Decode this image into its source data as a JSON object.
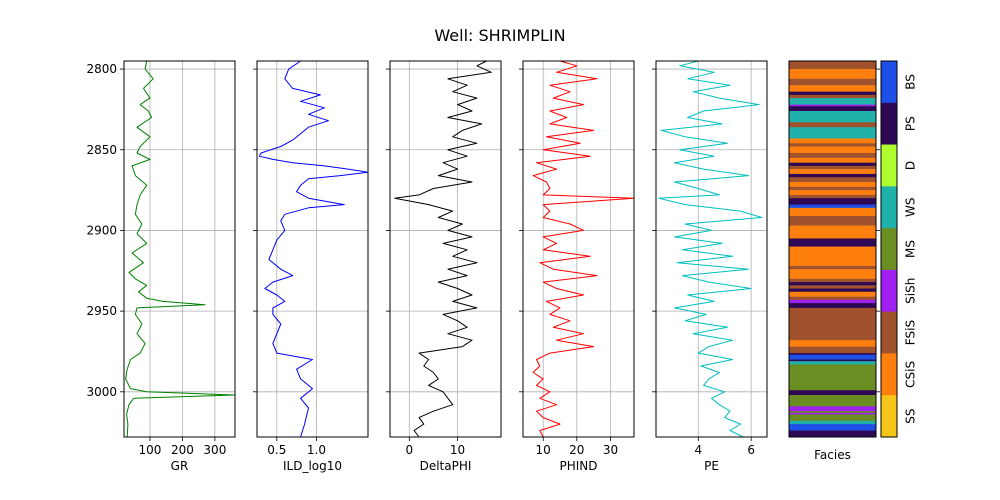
{
  "title": "Well: SHRIMPLIN",
  "chart_data": {
    "type": "line",
    "title": "Well: SHRIMPLIN",
    "depth_axis": {
      "ylim": [
        2795,
        3028
      ],
      "inverted": true,
      "ticks": [
        2800,
        2850,
        2900,
        2950,
        3000
      ],
      "grid": true
    },
    "tracks": [
      {
        "key": "gr",
        "xlabel": "GR",
        "color": "#008000",
        "xlim": [
          20,
          362
        ],
        "ticks": [
          100,
          200,
          300
        ],
        "tick_labels": [
          "100",
          "200",
          "300"
        ],
        "depths": [
          2794,
          2800,
          2806,
          2812,
          2818,
          2822,
          2826,
          2830,
          2836,
          2842,
          2848,
          2852,
          2856,
          2860,
          2866,
          2872,
          2878,
          2884,
          2890,
          2896,
          2902,
          2908,
          2914,
          2920,
          2926,
          2930,
          2934,
          2938,
          2942,
          2944,
          2946,
          2948,
          2952,
          2958,
          2964,
          2970,
          2976,
          2980,
          2986,
          2992,
          2998,
          3000,
          3002,
          3004,
          3008,
          3014,
          3020,
          3028
        ],
        "values": [
          90,
          85,
          110,
          80,
          100,
          70,
          95,
          105,
          60,
          100,
          70,
          60,
          100,
          45,
          55,
          90,
          70,
          60,
          55,
          75,
          60,
          90,
          45,
          80,
          35,
          55,
          90,
          65,
          90,
          140,
          270,
          60,
          55,
          75,
          60,
          85,
          70,
          40,
          30,
          25,
          40,
          90,
          360,
          50,
          35,
          28,
          32,
          30
        ]
      },
      {
        "key": "ild",
        "xlabel": "ILD_log10",
        "color": "#0000ff",
        "xlim": [
          0.25,
          1.65
        ],
        "ticks": [
          0.5,
          1.0
        ],
        "tick_labels": [
          "0.5",
          "1.0"
        ],
        "depths": [
          2794,
          2800,
          2806,
          2812,
          2816,
          2820,
          2824,
          2828,
          2832,
          2836,
          2840,
          2844,
          2848,
          2852,
          2854,
          2856,
          2858,
          2860,
          2862,
          2864,
          2866,
          2868,
          2872,
          2876,
          2880,
          2884,
          2886,
          2890,
          2894,
          2900,
          2906,
          2912,
          2918,
          2924,
          2928,
          2932,
          2936,
          2940,
          2944,
          2948,
          2952,
          2958,
          2964,
          2970,
          2976,
          2980,
          2986,
          2992,
          2998,
          3004,
          3010,
          3020,
          3028
        ],
        "values": [
          0.8,
          0.65,
          0.6,
          0.7,
          1.05,
          0.8,
          1.1,
          0.9,
          1.15,
          0.9,
          0.8,
          0.7,
          0.55,
          0.3,
          0.28,
          0.45,
          0.7,
          1.1,
          1.4,
          1.65,
          1.3,
          0.9,
          0.8,
          0.75,
          0.9,
          1.35,
          0.9,
          0.6,
          0.55,
          0.6,
          0.5,
          0.45,
          0.4,
          0.55,
          0.7,
          0.45,
          0.35,
          0.5,
          0.6,
          0.45,
          0.45,
          0.55,
          0.5,
          0.45,
          0.5,
          0.95,
          0.75,
          0.8,
          0.95,
          0.8,
          0.9,
          0.85,
          0.8
        ]
      },
      {
        "key": "dphi",
        "xlabel": "DeltaPHI",
        "color": "#000000",
        "xlim": [
          -4,
          19
        ],
        "ticks": [
          0,
          10
        ],
        "tick_labels": [
          "0",
          "10"
        ],
        "depths": [
          2794,
          2798,
          2802,
          2806,
          2810,
          2814,
          2818,
          2822,
          2826,
          2830,
          2834,
          2838,
          2842,
          2846,
          2850,
          2854,
          2858,
          2862,
          2866,
          2870,
          2874,
          2878,
          2880,
          2884,
          2888,
          2892,
          2896,
          2900,
          2904,
          2908,
          2912,
          2916,
          2920,
          2924,
          2928,
          2932,
          2936,
          2940,
          2944,
          2948,
          2952,
          2956,
          2960,
          2964,
          2968,
          2972,
          2976,
          2980,
          2984,
          2988,
          2992,
          2996,
          3000,
          3004,
          3008,
          3012,
          3016,
          3020,
          3024,
          3028
        ],
        "values": [
          16,
          14,
          17,
          8,
          12,
          9,
          14,
          10,
          13,
          8,
          15,
          11,
          9,
          14,
          8,
          12,
          7,
          10,
          6,
          13,
          5,
          2,
          -3,
          4,
          9,
          6,
          11,
          8,
          13,
          7,
          12,
          9,
          14,
          8,
          12,
          6,
          10,
          13,
          9,
          14,
          7,
          10,
          12,
          8,
          13,
          11,
          2,
          4,
          3,
          5,
          6,
          4,
          7,
          8,
          9,
          5,
          2,
          3,
          1,
          2
        ]
      },
      {
        "key": "phind",
        "xlabel": "PHIND",
        "color": "#ff0000",
        "xlim": [
          4,
          37
        ],
        "ticks": [
          10,
          20,
          30
        ],
        "tick_labels": [
          "10",
          "20",
          "30"
        ],
        "depths": [
          2794,
          2798,
          2802,
          2806,
          2810,
          2814,
          2818,
          2822,
          2826,
          2830,
          2834,
          2838,
          2842,
          2846,
          2850,
          2854,
          2858,
          2862,
          2866,
          2870,
          2874,
          2878,
          2880,
          2884,
          2888,
          2892,
          2896,
          2900,
          2904,
          2908,
          2912,
          2916,
          2920,
          2924,
          2928,
          2932,
          2936,
          2940,
          2944,
          2948,
          2952,
          2956,
          2960,
          2964,
          2968,
          2972,
          2976,
          2980,
          2984,
          2988,
          2992,
          2996,
          3000,
          3004,
          3008,
          3012,
          3016,
          3020,
          3024,
          3028
        ],
        "values": [
          15,
          20,
          14,
          26,
          12,
          18,
          13,
          22,
          12,
          17,
          12,
          25,
          11,
          21,
          10,
          24,
          8,
          14,
          7,
          11,
          12,
          10,
          37,
          10,
          12,
          10,
          18,
          22,
          10,
          14,
          10,
          24,
          9,
          13,
          26,
          10,
          14,
          22,
          11,
          15,
          12,
          18,
          13,
          22,
          14,
          25,
          12,
          8,
          9,
          7,
          10,
          8,
          12,
          9,
          14,
          8,
          10,
          15,
          9,
          10
        ]
      },
      {
        "key": "pe",
        "xlabel": "PE",
        "color": "#00bfbf",
        "xlim": [
          2.4,
          6.6
        ],
        "ticks": [
          4,
          6
        ],
        "tick_labels": [
          "4",
          "6"
        ],
        "depths": [
          2794,
          2798,
          2802,
          2806,
          2810,
          2814,
          2818,
          2822,
          2826,
          2830,
          2834,
          2838,
          2842,
          2846,
          2850,
          2854,
          2858,
          2862,
          2866,
          2870,
          2874,
          2878,
          2880,
          2884,
          2888,
          2892,
          2896,
          2900,
          2904,
          2908,
          2912,
          2916,
          2920,
          2924,
          2928,
          2932,
          2936,
          2940,
          2944,
          2948,
          2952,
          2956,
          2960,
          2964,
          2968,
          2972,
          2976,
          2980,
          2984,
          2988,
          2992,
          2996,
          3000,
          3004,
          3008,
          3012,
          3016,
          3020,
          3024,
          3028
        ],
        "values": [
          4.0,
          3.3,
          4.6,
          3.6,
          5.2,
          3.8,
          4.8,
          6.3,
          4.2,
          3.6,
          4.9,
          2.6,
          3.5,
          5.1,
          3.3,
          4.6,
          3.1,
          4.2,
          5.9,
          3.1,
          4.0,
          4.8,
          2.5,
          3.5,
          5.6,
          6.4,
          3.5,
          4.5,
          3.1,
          4.9,
          3.4,
          5.3,
          3.2,
          5.9,
          3.4,
          4.4,
          6.0,
          3.6,
          4.6,
          3.1,
          4.3,
          3.5,
          5.1,
          3.8,
          5.3,
          4.4,
          4.0,
          5.3,
          4.1,
          4.8,
          4.4,
          4.2,
          5.0,
          4.5,
          4.8,
          5.2,
          5.0,
          5.6,
          5.2,
          5.7
        ]
      }
    ],
    "facies": {
      "xlabel": "Facies",
      "legend_labels": [
        "SS",
        "CSiS",
        "FSiS",
        "SiSh",
        "MS",
        "WS",
        "D",
        "PS",
        "BS"
      ],
      "legend_colors": [
        "#F4D03F",
        "#F5B041",
        "#DC7633",
        "#6E2C00",
        "#1B4F72",
        "#2E86C1",
        "#AED6F1",
        "#A569BD",
        "#196F3D"
      ],
      "legend_order_top_to_bottom": [
        "BS",
        "PS",
        "D",
        "WS",
        "MS",
        "SiSh",
        "FSiS",
        "CSiS",
        "SS"
      ],
      "colors": {
        "SS": "#f5c518",
        "CSiS": "#ff7f0e",
        "FSiS": "#a0522d",
        "SiSh": "#a020f0",
        "MS": "#6b8e23",
        "WS": "#20b2aa",
        "D": "#adff2f",
        "PS": "#2e0854",
        "BS": "#1e50e8"
      },
      "intervals": [
        {
          "top": 2794,
          "bottom": 2800,
          "facies": "FSiS"
        },
        {
          "top": 2800,
          "bottom": 2806,
          "facies": "CSiS"
        },
        {
          "top": 2806,
          "bottom": 2810,
          "facies": "FSiS"
        },
        {
          "top": 2810,
          "bottom": 2814,
          "facies": "CSiS"
        },
        {
          "top": 2814,
          "bottom": 2816,
          "facies": "PS"
        },
        {
          "top": 2816,
          "bottom": 2818,
          "facies": "FSiS"
        },
        {
          "top": 2818,
          "bottom": 2822,
          "facies": "WS"
        },
        {
          "top": 2822,
          "bottom": 2823,
          "facies": "SiSh"
        },
        {
          "top": 2823,
          "bottom": 2826,
          "facies": "PS"
        },
        {
          "top": 2826,
          "bottom": 2833,
          "facies": "WS"
        },
        {
          "top": 2833,
          "bottom": 2836,
          "facies": "FSiS"
        },
        {
          "top": 2836,
          "bottom": 2843,
          "facies": "WS"
        },
        {
          "top": 2843,
          "bottom": 2846,
          "facies": "CSiS"
        },
        {
          "top": 2846,
          "bottom": 2848,
          "facies": "FSiS"
        },
        {
          "top": 2848,
          "bottom": 2852,
          "facies": "CSiS"
        },
        {
          "top": 2852,
          "bottom": 2855,
          "facies": "FSiS"
        },
        {
          "top": 2855,
          "bottom": 2858,
          "facies": "CSiS"
        },
        {
          "top": 2858,
          "bottom": 2860,
          "facies": "PS"
        },
        {
          "top": 2860,
          "bottom": 2862,
          "facies": "FSiS"
        },
        {
          "top": 2862,
          "bottom": 2865,
          "facies": "CSiS"
        },
        {
          "top": 2865,
          "bottom": 2867,
          "facies": "PS"
        },
        {
          "top": 2867,
          "bottom": 2870,
          "facies": "FSiS"
        },
        {
          "top": 2870,
          "bottom": 2873,
          "facies": "CSiS"
        },
        {
          "top": 2873,
          "bottom": 2875,
          "facies": "FSiS"
        },
        {
          "top": 2875,
          "bottom": 2878,
          "facies": "CSiS"
        },
        {
          "top": 2878,
          "bottom": 2880,
          "facies": "FSiS"
        },
        {
          "top": 2880,
          "bottom": 2884,
          "facies": "PS"
        },
        {
          "top": 2884,
          "bottom": 2886,
          "facies": "BS"
        },
        {
          "top": 2886,
          "bottom": 2891,
          "facies": "CSiS"
        },
        {
          "top": 2891,
          "bottom": 2897,
          "facies": "FSiS"
        },
        {
          "top": 2897,
          "bottom": 2905,
          "facies": "CSiS"
        },
        {
          "top": 2905,
          "bottom": 2910,
          "facies": "PS"
        },
        {
          "top": 2910,
          "bottom": 2922,
          "facies": "CSiS"
        },
        {
          "top": 2922,
          "bottom": 2924,
          "facies": "FSiS"
        },
        {
          "top": 2924,
          "bottom": 2930,
          "facies": "CSiS"
        },
        {
          "top": 2930,
          "bottom": 2932,
          "facies": "FSiS"
        },
        {
          "top": 2932,
          "bottom": 2934,
          "facies": "PS"
        },
        {
          "top": 2934,
          "bottom": 2936,
          "facies": "FSiS"
        },
        {
          "top": 2936,
          "bottom": 2938,
          "facies": "PS"
        },
        {
          "top": 2938,
          "bottom": 2941,
          "facies": "CSiS"
        },
        {
          "top": 2941,
          "bottom": 2943,
          "facies": "FSiS"
        },
        {
          "top": 2943,
          "bottom": 2945,
          "facies": "SiSh"
        },
        {
          "top": 2945,
          "bottom": 2948,
          "facies": "PS"
        },
        {
          "top": 2948,
          "bottom": 2968,
          "facies": "FSiS"
        },
        {
          "top": 2968,
          "bottom": 2972,
          "facies": "CSiS"
        },
        {
          "top": 2972,
          "bottom": 2976,
          "facies": "FSiS"
        },
        {
          "top": 2976,
          "bottom": 2977,
          "facies": "PS"
        },
        {
          "top": 2977,
          "bottom": 2980,
          "facies": "BS"
        },
        {
          "top": 2980,
          "bottom": 2981,
          "facies": "PS"
        },
        {
          "top": 2981,
          "bottom": 2983,
          "facies": "WS"
        },
        {
          "top": 2983,
          "bottom": 2999,
          "facies": "MS"
        },
        {
          "top": 2999,
          "bottom": 3002,
          "facies": "PS"
        },
        {
          "top": 3002,
          "bottom": 3009,
          "facies": "MS"
        },
        {
          "top": 3009,
          "bottom": 3012,
          "facies": "SiSh"
        },
        {
          "top": 3012,
          "bottom": 3013,
          "facies": "MS"
        },
        {
          "top": 3013,
          "bottom": 3014,
          "facies": "SiSh"
        },
        {
          "top": 3014,
          "bottom": 3018,
          "facies": "MS"
        },
        {
          "top": 3018,
          "bottom": 3020,
          "facies": "WS"
        },
        {
          "top": 3020,
          "bottom": 3024,
          "facies": "BS"
        },
        {
          "top": 3024,
          "bottom": 3028,
          "facies": "PS"
        }
      ]
    }
  }
}
